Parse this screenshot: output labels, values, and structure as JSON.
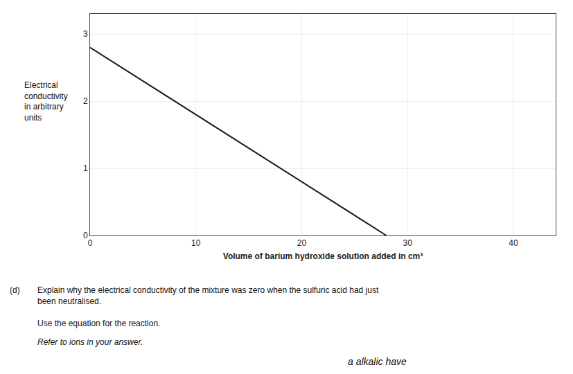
{
  "chart_data": {
    "type": "line",
    "x": [
      0,
      28
    ],
    "values": [
      2.8,
      0
    ],
    "color": "#1a1a1a",
    "xlabel": "Volume of barium hydroxide solution added in cm³",
    "ylabel": "Electrical\nconductivity\nin arbitrary\nunits",
    "xlim": [
      0,
      44
    ],
    "ylim": [
      0,
      3.3
    ],
    "xticks": [
      0,
      10,
      20,
      30,
      40
    ],
    "yticks": [
      0,
      1,
      2,
      3
    ],
    "grid": true,
    "annotations": [
      "(d)",
      "Explain why the electrical conductivity of the mixture was zero when the sulfuric acid had just\nbeen neutralised.",
      "Use the equation for the reaction.",
      "Refer to ions in your answer.",
      "a alkalic have"
    ]
  }
}
